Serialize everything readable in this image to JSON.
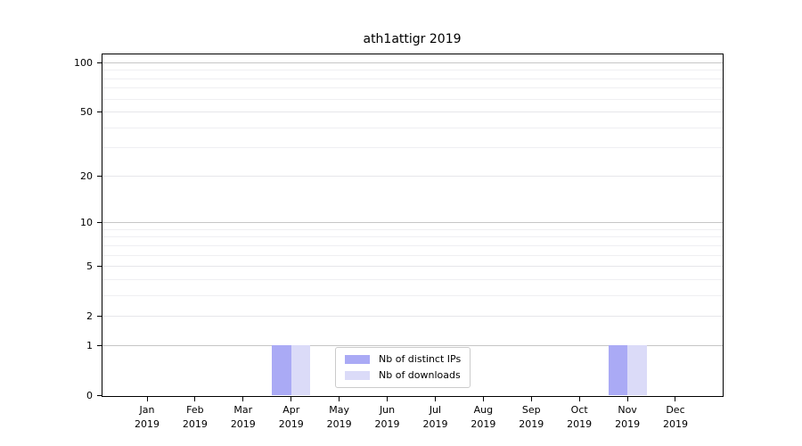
{
  "chart_data": {
    "type": "bar",
    "title": "ath1attigr 2019",
    "categories": [
      "Jan",
      "Feb",
      "Mar",
      "Apr",
      "May",
      "Jun",
      "Jul",
      "Aug",
      "Sep",
      "Oct",
      "Nov",
      "Dec"
    ],
    "category_year": "2019",
    "series": [
      {
        "name": "Nb of distinct IPs",
        "color": "#aaaaf5",
        "values": [
          0,
          0,
          0,
          1,
          0,
          0,
          0,
          0,
          0,
          0,
          1,
          0
        ]
      },
      {
        "name": "Nb of downloads",
        "color": "#dbdbf8",
        "values": [
          0,
          0,
          0,
          1,
          0,
          0,
          0,
          0,
          0,
          0,
          1,
          0
        ]
      }
    ],
    "y_axis": {
      "scale": "log1p",
      "ticks": [
        0,
        1,
        2,
        5,
        10,
        20,
        50,
        100
      ],
      "tick_labels": [
        "0",
        "1",
        "2",
        "5",
        "10",
        "20",
        "50",
        "100"
      ],
      "minor_ticks": [
        3,
        4,
        6,
        7,
        8,
        9,
        30,
        40,
        60,
        70,
        80,
        90
      ],
      "ylim": [
        0,
        114
      ]
    },
    "legend": {
      "position": "lower center"
    },
    "grid": true,
    "colors": {
      "grid_major": "#c6c6c6",
      "grid_mid": "#e6e6ea",
      "grid_minor": "#efeff2",
      "axis": "#000000",
      "background": "#ffffff"
    }
  }
}
